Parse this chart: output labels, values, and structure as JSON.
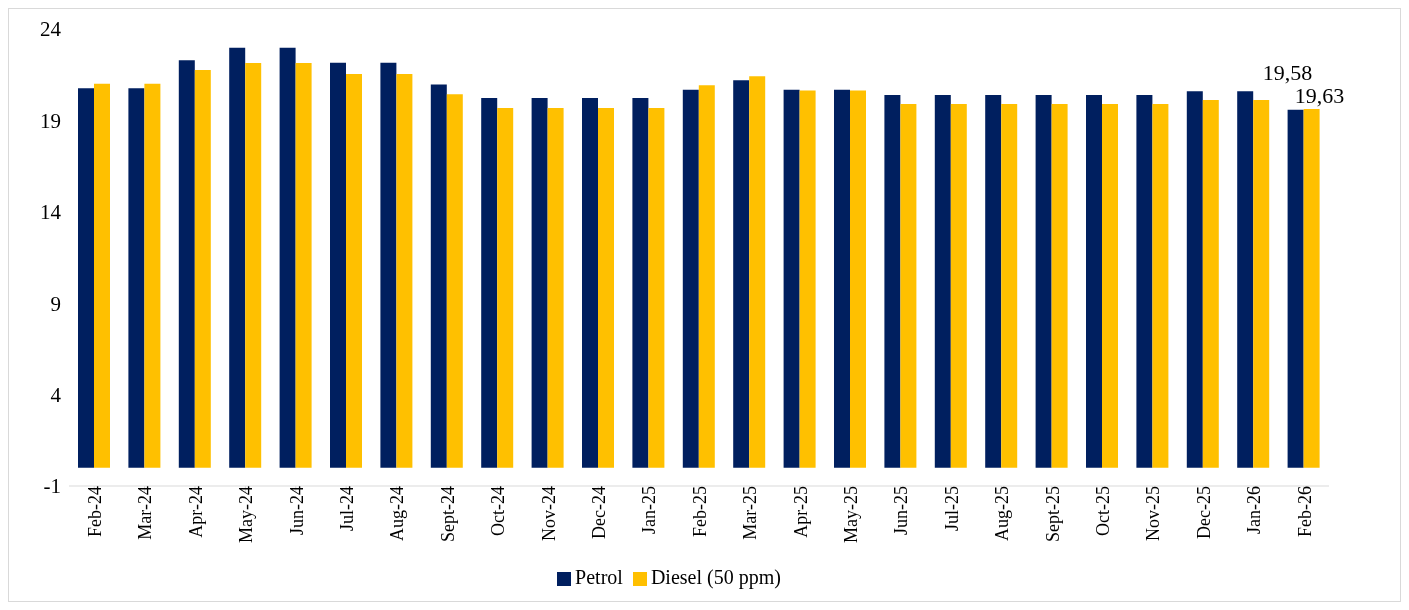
{
  "chart_data": {
    "type": "bar",
    "categories": [
      "Feb-24",
      "Mar-24",
      "Apr-24",
      "May-24",
      "Jun-24",
      "Jul-24",
      "Aug-24",
      "Sept-24",
      "Oct-24",
      "Nov-24",
      "Dec-24",
      "Jan-25",
      "Feb-25",
      "Mar-25",
      "Apr-25",
      "May-25",
      "Jun-25",
      "Jul-25",
      "Aug-25",
      "Sept-25",
      "Oct-25",
      "Nov-25",
      "Dec-25",
      "Jan-26",
      "Feb-26"
    ],
    "series": [
      {
        "name": "Petrol",
        "color": "#001f5f",
        "values": [
          20.76,
          20.76,
          22.29,
          22.98,
          22.98,
          22.16,
          22.16,
          20.97,
          20.22,
          20.22,
          20.22,
          20.22,
          20.68,
          21.19,
          20.68,
          20.68,
          20.39,
          20.39,
          20.39,
          20.39,
          20.39,
          20.39,
          20.6,
          20.6,
          19.58
        ],
        "value_labels": [
          null,
          null,
          null,
          null,
          null,
          null,
          null,
          null,
          null,
          null,
          null,
          null,
          null,
          null,
          null,
          null,
          null,
          null,
          null,
          null,
          null,
          null,
          null,
          null,
          "19,58"
        ]
      },
      {
        "name": "Diesel (50 ppm)",
        "color": "#ffc000",
        "values": [
          21.0,
          21.0,
          21.76,
          22.14,
          22.14,
          21.54,
          21.54,
          20.43,
          19.68,
          19.68,
          19.68,
          19.68,
          20.92,
          21.42,
          20.63,
          20.63,
          19.9,
          19.9,
          19.9,
          19.9,
          19.9,
          19.9,
          20.12,
          20.12,
          19.63
        ],
        "value_labels": [
          null,
          null,
          null,
          null,
          null,
          null,
          null,
          null,
          null,
          null,
          null,
          null,
          null,
          null,
          null,
          null,
          null,
          null,
          null,
          null,
          null,
          null,
          null,
          null,
          "19,63"
        ]
      }
    ],
    "ylim": [
      -1,
      24
    ],
    "yticks": [
      -1,
      4,
      9,
      14,
      19,
      24
    ],
    "grid": false,
    "legend": "bottom"
  }
}
